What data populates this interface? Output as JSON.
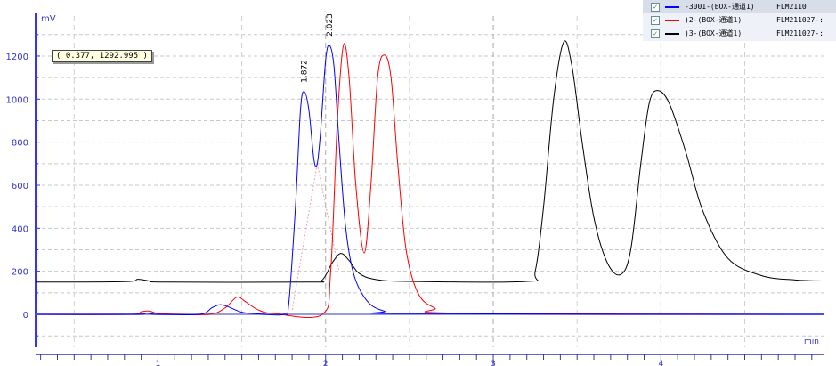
{
  "chart_data": {
    "type": "line",
    "ylabel": "mV",
    "xlabel": "min",
    "xlim": [
      0.27,
      4.97
    ],
    "ylim": [
      -153,
      1386
    ],
    "x_ticks": [
      1,
      2,
      3,
      4
    ],
    "y_ticks": [
      0,
      200,
      400,
      600,
      800,
      1000,
      1200
    ],
    "grid": true,
    "legend_position": "top-right",
    "peak_labels": [
      {
        "x": 1.872,
        "y": 1035,
        "text": "1.872"
      },
      {
        "x": 2.023,
        "y": 1250,
        "text": "2.023"
      }
    ],
    "series": [
      {
        "name": "-3001-(BOX-通道1)",
        "file": "FLM2110",
        "color": "#0000ff",
        "points": [
          [
            0.27,
            0
          ],
          [
            0.85,
            0
          ],
          [
            0.93,
            5
          ],
          [
            1.0,
            0
          ],
          [
            1.25,
            0
          ],
          [
            1.32,
            30
          ],
          [
            1.37,
            45
          ],
          [
            1.42,
            35
          ],
          [
            1.5,
            10
          ],
          [
            1.6,
            2
          ],
          [
            1.75,
            0
          ],
          [
            1.78,
            50
          ],
          [
            1.82,
            500
          ],
          [
            1.85,
            950
          ],
          [
            1.872,
            1035
          ],
          [
            1.9,
            950
          ],
          [
            1.93,
            720
          ],
          [
            1.95,
            700
          ],
          [
            1.97,
            850
          ],
          [
            2.0,
            1180
          ],
          [
            2.023,
            1250
          ],
          [
            2.05,
            1150
          ],
          [
            2.08,
            800
          ],
          [
            2.12,
            400
          ],
          [
            2.17,
            180
          ],
          [
            2.25,
            60
          ],
          [
            2.35,
            15
          ],
          [
            2.5,
            3
          ],
          [
            4.97,
            0
          ]
        ]
      },
      {
        "name": ")2-(BOX-通道1)",
        "file": "FLM211027-:",
        "color": "#ff0000",
        "points": [
          [
            0.27,
            0
          ],
          [
            0.83,
            0
          ],
          [
            0.9,
            12
          ],
          [
            0.95,
            15
          ],
          [
            1.02,
            3
          ],
          [
            1.3,
            0
          ],
          [
            1.4,
            30
          ],
          [
            1.47,
            80
          ],
          [
            1.52,
            60
          ],
          [
            1.6,
            20
          ],
          [
            1.7,
            3
          ],
          [
            1.98,
            0
          ],
          [
            2.03,
            200
          ],
          [
            2.07,
            900
          ],
          [
            2.106,
            1250
          ],
          [
            2.14,
            1100
          ],
          [
            2.18,
            600
          ],
          [
            2.23,
            285
          ],
          [
            2.27,
            600
          ],
          [
            2.31,
            1100
          ],
          [
            2.35,
            1205
          ],
          [
            2.39,
            1100
          ],
          [
            2.43,
            700
          ],
          [
            2.48,
            300
          ],
          [
            2.55,
            100
          ],
          [
            2.65,
            30
          ],
          [
            2.8,
            5
          ],
          [
            4.97,
            0
          ]
        ]
      },
      {
        "name": ")3-(BOX-通道1)",
        "file": "FLM211027-:",
        "color": "#000000",
        "points": [
          [
            0.27,
            150
          ],
          [
            0.8,
            152
          ],
          [
            0.88,
            163
          ],
          [
            0.95,
            155
          ],
          [
            1.05,
            150
          ],
          [
            1.9,
            150
          ],
          [
            1.98,
            160
          ],
          [
            2.04,
            240
          ],
          [
            2.09,
            283
          ],
          [
            2.14,
            250
          ],
          [
            2.2,
            190
          ],
          [
            2.3,
            162
          ],
          [
            2.5,
            153
          ],
          [
            3.2,
            153
          ],
          [
            3.25,
            200
          ],
          [
            3.3,
            500
          ],
          [
            3.36,
            1000
          ],
          [
            3.42,
            1265
          ],
          [
            3.47,
            1150
          ],
          [
            3.53,
            800
          ],
          [
            3.6,
            450
          ],
          [
            3.68,
            240
          ],
          [
            3.76,
            185
          ],
          [
            3.82,
            300
          ],
          [
            3.88,
            700
          ],
          [
            3.93,
            980
          ],
          [
            3.98,
            1040
          ],
          [
            4.05,
            980
          ],
          [
            4.15,
            750
          ],
          [
            4.25,
            480
          ],
          [
            4.4,
            260
          ],
          [
            4.6,
            180
          ],
          [
            4.8,
            160
          ],
          [
            4.97,
            155
          ]
        ]
      }
    ]
  },
  "tooltip": "( 0.377,  1292.995 )"
}
